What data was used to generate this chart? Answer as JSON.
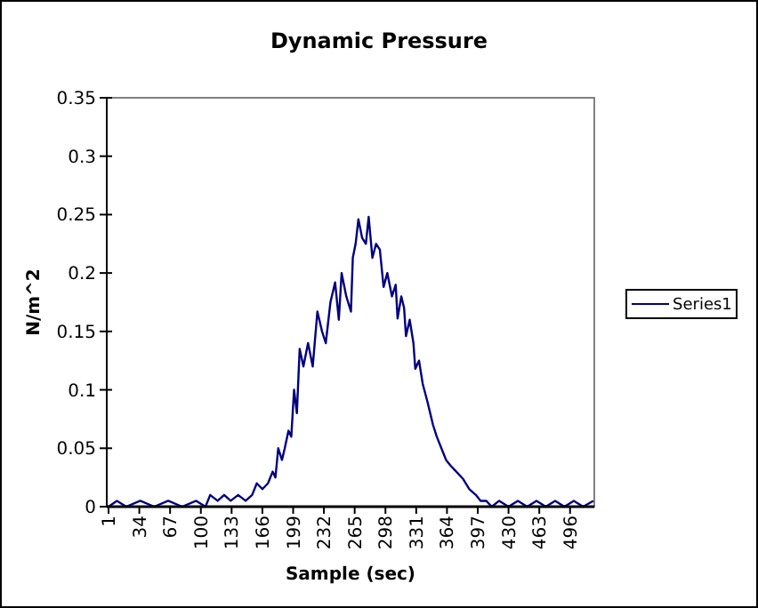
{
  "chart_data": {
    "type": "line",
    "title": "Dynamic Pressure",
    "xlabel": "Sample (sec)",
    "ylabel": "N/m^2",
    "series": [
      {
        "name": "Series1",
        "color": "#000080",
        "x": [
          1,
          10,
          20,
          35,
          50,
          65,
          80,
          95,
          105,
          110,
          118,
          125,
          132,
          140,
          148,
          155,
          160,
          166,
          172,
          177,
          180,
          183,
          187,
          190,
          194,
          197,
          200,
          203,
          206,
          210,
          215,
          220,
          225,
          230,
          234,
          239,
          244,
          248,
          251,
          256,
          261,
          263,
          266,
          269,
          273,
          277,
          280,
          284,
          288,
          292,
          296,
          300,
          305,
          309,
          311,
          315,
          318,
          320,
          324,
          328,
          330,
          334,
          338,
          343,
          346,
          349,
          353,
          358,
          363,
          368,
          374,
          381,
          388,
          395,
          400,
          406,
          412,
          420,
          430,
          440,
          450,
          460,
          470,
          480,
          490,
          500,
          510,
          521
        ],
        "values": [
          0,
          0.005,
          0,
          0.005,
          0,
          0.005,
          0,
          0.005,
          0,
          0.01,
          0.005,
          0.01,
          0.005,
          0.01,
          0.005,
          0.01,
          0.02,
          0.015,
          0.02,
          0.03,
          0.025,
          0.05,
          0.04,
          0.05,
          0.065,
          0.06,
          0.1,
          0.08,
          0.135,
          0.12,
          0.14,
          0.12,
          0.167,
          0.15,
          0.14,
          0.175,
          0.192,
          0.16,
          0.2,
          0.18,
          0.167,
          0.213,
          0.225,
          0.246,
          0.23,
          0.225,
          0.248,
          0.213,
          0.225,
          0.22,
          0.188,
          0.2,
          0.18,
          0.19,
          0.161,
          0.18,
          0.17,
          0.146,
          0.16,
          0.14,
          0.118,
          0.125,
          0.105,
          0.09,
          0.08,
          0.07,
          0.06,
          0.05,
          0.04,
          0.035,
          0.03,
          0.024,
          0.015,
          0.01,
          0.005,
          0.005,
          0,
          0.005,
          0,
          0.005,
          0,
          0.005,
          0,
          0.005,
          0,
          0.005,
          0,
          0.005
        ]
      }
    ],
    "xlim": [
      1,
      522
    ],
    "xticks": [
      1,
      34,
      67,
      100,
      133,
      166,
      199,
      232,
      265,
      298,
      331,
      364,
      397,
      430,
      463,
      496
    ],
    "ylim": [
      0,
      0.35
    ],
    "yticks": [
      0,
      0.05,
      0.1,
      0.15,
      0.2,
      0.25,
      0.3,
      0.35
    ],
    "grid": false,
    "legend": "right",
    "marker": "none",
    "line_style": "solid"
  }
}
